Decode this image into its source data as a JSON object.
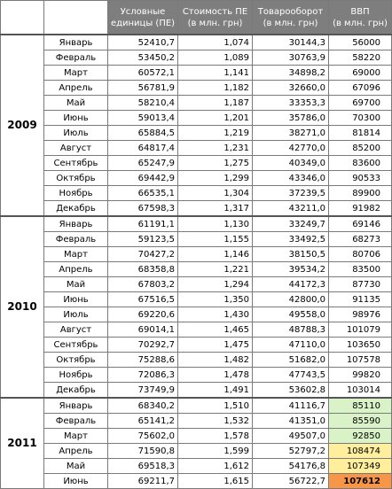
{
  "headers": [
    {
      "line1": "Условные",
      "line2": "единицы (ПЕ)"
    },
    {
      "line1": "Стоимость ПЕ",
      "line2": "(в млн. грн)"
    },
    {
      "line1": "Товарооборот",
      "line2": "(в млн. грн)"
    },
    {
      "line1": "ВВП",
      "line2": "(в млн. грн)"
    }
  ],
  "years": [
    {
      "year": "2009",
      "rows": [
        {
          "month": "Январь",
          "units": "52410,7",
          "cost": "1,074",
          "turnover": "30144,3",
          "gdp": "56000",
          "hl": ""
        },
        {
          "month": "Февраль",
          "units": "53450,2",
          "cost": "1,089",
          "turnover": "30763,9",
          "gdp": "58220",
          "hl": ""
        },
        {
          "month": "Март",
          "units": "60572,1",
          "cost": "1,141",
          "turnover": "34898,2",
          "gdp": "69000",
          "hl": ""
        },
        {
          "month": "Апрель",
          "units": "56781,9",
          "cost": "1,182",
          "turnover": "32660,0",
          "gdp": "67096",
          "hl": ""
        },
        {
          "month": "Май",
          "units": "58210,4",
          "cost": "1,187",
          "turnover": "33353,3",
          "gdp": "69700",
          "hl": ""
        },
        {
          "month": "Июнь",
          "units": "59013,4",
          "cost": "1,201",
          "turnover": "35786,0",
          "gdp": "70300",
          "hl": ""
        },
        {
          "month": "Июль",
          "units": "65884,5",
          "cost": "1,219",
          "turnover": "38271,0",
          "gdp": "81814",
          "hl": ""
        },
        {
          "month": "Август",
          "units": "64817,4",
          "cost": "1,231",
          "turnover": "42770,0",
          "gdp": "85200",
          "hl": ""
        },
        {
          "month": "Сентябрь",
          "units": "65247,9",
          "cost": "1,275",
          "turnover": "40349,0",
          "gdp": "83600",
          "hl": ""
        },
        {
          "month": "Октябрь",
          "units": "69442,9",
          "cost": "1,299",
          "turnover": "43346,0",
          "gdp": "90533",
          "hl": ""
        },
        {
          "month": "Ноябрь",
          "units": "66535,1",
          "cost": "1,304",
          "turnover": "37239,5",
          "gdp": "89900",
          "hl": ""
        },
        {
          "month": "Декабрь",
          "units": "67598,3",
          "cost": "1,317",
          "turnover": "43211,0",
          "gdp": "91982",
          "hl": ""
        }
      ]
    },
    {
      "year": "2010",
      "rows": [
        {
          "month": "Январь",
          "units": "61191,1",
          "cost": "1,130",
          "turnover": "33249,7",
          "gdp": "69146",
          "hl": ""
        },
        {
          "month": "Февраль",
          "units": "59123,5",
          "cost": "1,155",
          "turnover": "33492,5",
          "gdp": "68273",
          "hl": ""
        },
        {
          "month": "Март",
          "units": "70427,2",
          "cost": "1,146",
          "turnover": "38150,5",
          "gdp": "80706",
          "hl": ""
        },
        {
          "month": "Апрель",
          "units": "68358,8",
          "cost": "1,221",
          "turnover": "39534,2",
          "gdp": "83500",
          "hl": ""
        },
        {
          "month": "Май",
          "units": "67803,2",
          "cost": "1,294",
          "turnover": "44172,3",
          "gdp": "87730",
          "hl": ""
        },
        {
          "month": "Июнь",
          "units": "67516,5",
          "cost": "1,350",
          "turnover": "42800,0",
          "gdp": "91135",
          "hl": ""
        },
        {
          "month": "Июль",
          "units": "69220,6",
          "cost": "1,430",
          "turnover": "49558,0",
          "gdp": "98976",
          "hl": ""
        },
        {
          "month": "Август",
          "units": "69014,1",
          "cost": "1,465",
          "turnover": "48788,3",
          "gdp": "101079",
          "hl": ""
        },
        {
          "month": "Сентябрь",
          "units": "70292,7",
          "cost": "1,475",
          "turnover": "47110,0",
          "gdp": "103650",
          "hl": ""
        },
        {
          "month": "Октябрь",
          "units": "75288,6",
          "cost": "1,482",
          "turnover": "51682,0",
          "gdp": "107578",
          "hl": ""
        },
        {
          "month": "Ноябрь",
          "units": "72086,3",
          "cost": "1,478",
          "turnover": "47743,5",
          "gdp": "99820",
          "hl": ""
        },
        {
          "month": "Декабрь",
          "units": "73749,9",
          "cost": "1,491",
          "turnover": "53602,8",
          "gdp": "103014",
          "hl": ""
        }
      ]
    },
    {
      "year": "2011",
      "rows": [
        {
          "month": "Январь",
          "units": "68340,2",
          "cost": "1,510",
          "turnover": "41116,7",
          "gdp": "85110",
          "hl": "green"
        },
        {
          "month": "Февраль",
          "units": "65141,2",
          "cost": "1,532",
          "turnover": "41351,0",
          "gdp": "85590",
          "hl": "green"
        },
        {
          "month": "Март",
          "units": "75602,0",
          "cost": "1,578",
          "turnover": "49507,0",
          "gdp": "92850",
          "hl": "green"
        },
        {
          "month": "Апрель",
          "units": "71590,8",
          "cost": "1,599",
          "turnover": "52797,2",
          "gdp": "108474",
          "hl": "yellow"
        },
        {
          "month": "Май",
          "units": "69518,3",
          "cost": "1,612",
          "turnover": "54176,8",
          "gdp": "107349",
          "hl": "yellow"
        },
        {
          "month": "Июнь",
          "units": "69211,7",
          "cost": "1,615",
          "turnover": "56722,7",
          "gdp": "107612",
          "hl": "orange"
        }
      ]
    }
  ],
  "colors": {
    "header_bg": "#7e7e7e",
    "highlight_green": "#d9f2c7",
    "highlight_yellow": "#ffee9c",
    "highlight_orange": "#f79646"
  }
}
